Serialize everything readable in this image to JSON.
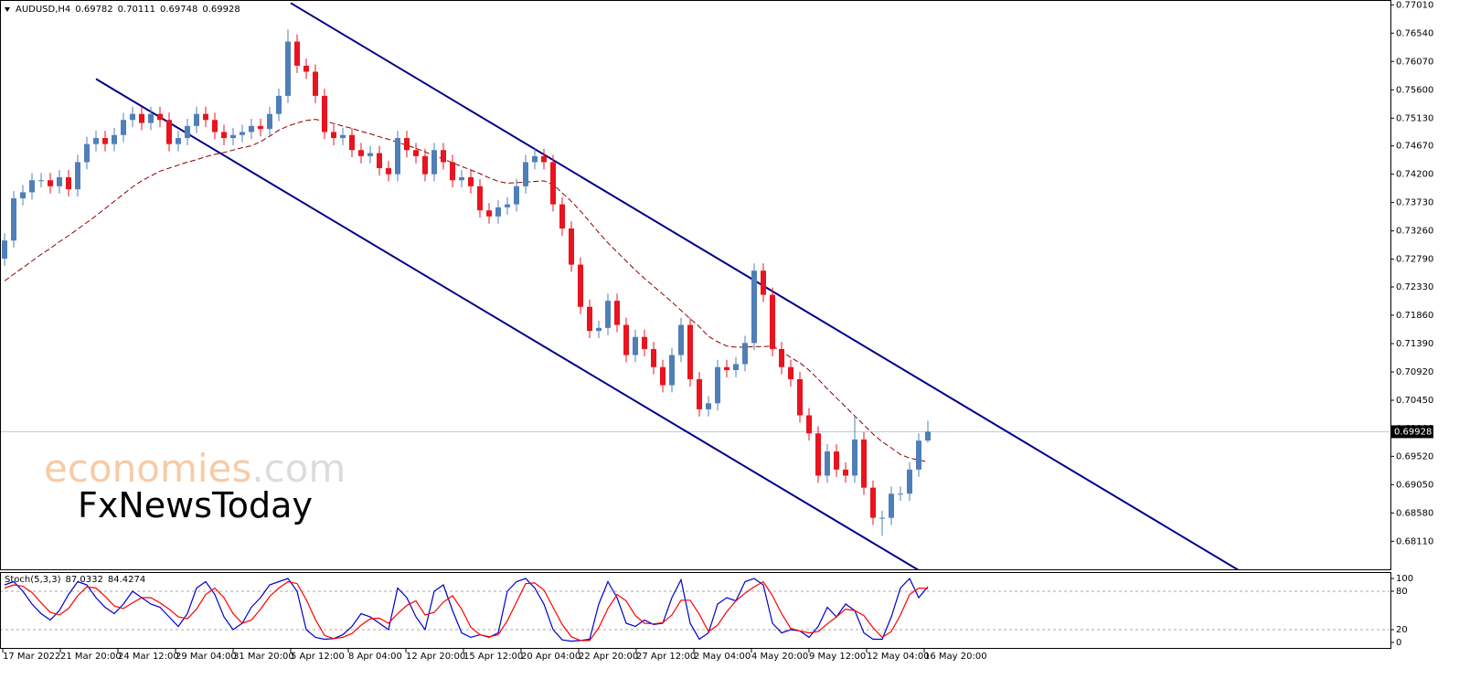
{
  "chart_data": {
    "type": "candlestick",
    "symbol": "AUDUSD,H4",
    "up_color": "#4f7fb8",
    "down_color": "#e8141e",
    "open": [
      0.728,
      0.731,
      0.738,
      0.739,
      0.741,
      0.741,
      0.74,
      0.7415,
      0.7395,
      0.744,
      0.747,
      0.748,
      0.747,
      0.7485,
      0.751,
      0.752,
      0.7505,
      0.752,
      0.751,
      0.747,
      0.748,
      0.75,
      0.752,
      0.751,
      0.749,
      0.748,
      0.7485,
      0.749,
      0.75,
      0.7495,
      0.752,
      0.755,
      0.764,
      0.76,
      0.759,
      0.755,
      0.749,
      0.748,
      0.7485,
      0.746,
      0.745,
      0.7455,
      0.743,
      0.742,
      0.748,
      0.746,
      0.745,
      0.742,
      0.746,
      0.744,
      0.741,
      0.7415,
      0.74,
      0.736,
      0.735,
      0.7365,
      0.737,
      0.74,
      0.744,
      0.745,
      0.744,
      0.737,
      0.733,
      0.727,
      0.72,
      0.716,
      0.7165,
      0.721,
      0.717,
      0.712,
      0.715,
      0.713,
      0.71,
      0.707,
      0.712,
      0.717,
      0.708,
      0.703,
      0.704,
      0.71,
      0.7095,
      0.7105,
      0.714,
      0.726,
      0.722,
      0.713,
      0.71,
      0.708,
      0.702,
      0.699,
      0.692,
      0.696,
      0.693,
      0.692,
      0.698,
      0.69,
      0.685,
      0.685,
      0.689,
      0.689,
      0.693,
      0.69782
    ],
    "high": [
      0.7322,
      0.7392,
      0.7402,
      0.7422,
      0.7422,
      0.7422,
      0.7427,
      0.7427,
      0.7452,
      0.7482,
      0.7492,
      0.7492,
      0.7497,
      0.7522,
      0.7532,
      0.7532,
      0.7532,
      0.7532,
      0.7522,
      0.7492,
      0.7512,
      0.7532,
      0.7532,
      0.7522,
      0.7502,
      0.7497,
      0.7502,
      0.7512,
      0.7512,
      0.7532,
      0.7562,
      0.766,
      0.7652,
      0.7612,
      0.7602,
      0.7562,
      0.7502,
      0.7497,
      0.7497,
      0.7472,
      0.7467,
      0.7467,
      0.7442,
      0.7492,
      0.7492,
      0.7472,
      0.7462,
      0.7472,
      0.7472,
      0.7452,
      0.7427,
      0.7427,
      0.7412,
      0.7372,
      0.7377,
      0.7382,
      0.7412,
      0.7452,
      0.7462,
      0.7462,
      0.7452,
      0.7382,
      0.7342,
      0.7282,
      0.7212,
      0.7177,
      0.7222,
      0.7222,
      0.7182,
      0.7162,
      0.7162,
      0.7142,
      0.7112,
      0.7132,
      0.7182,
      0.7182,
      0.7092,
      0.7052,
      0.7112,
      0.7112,
      0.7117,
      0.7152,
      0.7272,
      0.7272,
      0.7232,
      0.7142,
      0.7112,
      0.7092,
      0.7032,
      0.7002,
      0.6972,
      0.6972,
      0.6942,
      0.702,
      0.6992,
      0.6912,
      0.6862,
      0.6902,
      0.6902,
      0.6942,
      0.699,
      0.70111
    ],
    "low": [
      0.7268,
      0.7298,
      0.7368,
      0.7378,
      0.7398,
      0.7388,
      0.7388,
      0.7383,
      0.7383,
      0.7428,
      0.7458,
      0.7458,
      0.7458,
      0.7473,
      0.7498,
      0.7493,
      0.7493,
      0.7498,
      0.7458,
      0.7458,
      0.7468,
      0.7488,
      0.7498,
      0.7478,
      0.7468,
      0.7468,
      0.7473,
      0.7478,
      0.7483,
      0.7483,
      0.7508,
      0.7538,
      0.7588,
      0.7578,
      0.7538,
      0.7478,
      0.7468,
      0.7468,
      0.7448,
      0.7438,
      0.7438,
      0.7418,
      0.7408,
      0.7408,
      0.7448,
      0.7438,
      0.7408,
      0.7408,
      0.7428,
      0.7398,
      0.7398,
      0.7388,
      0.7348,
      0.7338,
      0.7338,
      0.7353,
      0.7358,
      0.7388,
      0.7428,
      0.7428,
      0.7358,
      0.7318,
      0.7258,
      0.7188,
      0.7148,
      0.7148,
      0.7153,
      0.7158,
      0.7108,
      0.7108,
      0.7118,
      0.7088,
      0.7058,
      0.7058,
      0.7108,
      0.7068,
      0.7018,
      0.7018,
      0.7028,
      0.7083,
      0.7083,
      0.7093,
      0.7128,
      0.7208,
      0.7118,
      0.7088,
      0.7068,
      0.7008,
      0.6978,
      0.6908,
      0.6908,
      0.6918,
      0.6908,
      0.6908,
      0.6888,
      0.6838,
      0.682,
      0.6838,
      0.6878,
      0.6878,
      0.6918,
      0.69748
    ],
    "close": [
      0.731,
      0.738,
      0.739,
      0.741,
      0.741,
      0.74,
      0.7415,
      0.7395,
      0.744,
      0.747,
      0.748,
      0.747,
      0.7485,
      0.751,
      0.752,
      0.7505,
      0.752,
      0.751,
      0.747,
      0.748,
      0.75,
      0.752,
      0.751,
      0.749,
      0.748,
      0.7485,
      0.749,
      0.75,
      0.7495,
      0.752,
      0.755,
      0.764,
      0.76,
      0.759,
      0.755,
      0.749,
      0.748,
      0.7485,
      0.746,
      0.745,
      0.7455,
      0.743,
      0.742,
      0.748,
      0.746,
      0.745,
      0.742,
      0.746,
      0.744,
      0.741,
      0.7415,
      0.74,
      0.736,
      0.735,
      0.7365,
      0.737,
      0.74,
      0.744,
      0.745,
      0.744,
      0.737,
      0.733,
      0.727,
      0.72,
      0.716,
      0.7165,
      0.721,
      0.717,
      0.712,
      0.715,
      0.713,
      0.71,
      0.707,
      0.712,
      0.717,
      0.708,
      0.703,
      0.704,
      0.71,
      0.7095,
      0.7105,
      0.714,
      0.726,
      0.722,
      0.713,
      0.71,
      0.708,
      0.702,
      0.699,
      0.692,
      0.696,
      0.693,
      0.692,
      0.698,
      0.69,
      0.685,
      0.685,
      0.689,
      0.689,
      0.693,
      0.6978,
      0.69928
    ],
    "moving_average": {
      "color": "#8b0000",
      "values": [
        0.7243,
        0.7254,
        0.7265,
        0.7276,
        0.7287,
        0.7297,
        0.7308,
        0.7318,
        0.7329,
        0.734,
        0.7351,
        0.7363,
        0.7375,
        0.7387,
        0.7399,
        0.7409,
        0.7417,
        0.7425,
        0.743,
        0.7435,
        0.744,
        0.7444,
        0.7449,
        0.7453,
        0.7456,
        0.746,
        0.7464,
        0.7467,
        0.7474,
        0.7483,
        0.7493,
        0.75,
        0.7505,
        0.7509,
        0.7511,
        0.7508,
        0.7504,
        0.75,
        0.7496,
        0.7491,
        0.7487,
        0.7482,
        0.7478,
        0.7473,
        0.7468,
        0.7463,
        0.7457,
        0.7451,
        0.7445,
        0.7439,
        0.7433,
        0.7427,
        0.7421,
        0.7414,
        0.7408,
        0.7405,
        0.7406,
        0.7407,
        0.7408,
        0.7409,
        0.7403,
        0.7389,
        0.7375,
        0.7359,
        0.7341,
        0.7323,
        0.7306,
        0.7291,
        0.7276,
        0.7261,
        0.7247,
        0.7234,
        0.7221,
        0.7208,
        0.7194,
        0.718,
        0.7167,
        0.7151,
        0.7142,
        0.7135,
        0.7133,
        0.7133,
        0.7134,
        0.7134,
        0.7135,
        0.7126,
        0.7116,
        0.7107,
        0.7095,
        0.708,
        0.7064,
        0.7049,
        0.7034,
        0.7019,
        0.7004,
        0.6989,
        0.6976,
        0.6966,
        0.6955,
        0.6949,
        0.6946,
        0.6943
      ]
    },
    "channel": {
      "color": "#00008b",
      "lines": [
        {
          "x": [
            31.3,
            135
          ],
          "y": [
            0.7704,
            0.6763
          ]
        },
        {
          "x": [
            10,
            100
          ],
          "y": [
            0.7578,
            0.6763
          ]
        }
      ]
    },
    "current_price": 0.69928,
    "xlim": [
      -0.5,
      151.6
    ],
    "ylim": [
      0.6763,
      0.7709
    ],
    "yticks": [
      {
        "value": 0.7701,
        "label": "0.77010"
      },
      {
        "value": 0.7654,
        "label": "0.76540"
      },
      {
        "value": 0.7607,
        "label": "0.76070"
      },
      {
        "value": 0.756,
        "label": "0.75600"
      },
      {
        "value": 0.7513,
        "label": "0.75130"
      },
      {
        "value": 0.7467,
        "label": "0.74670"
      },
      {
        "value": 0.742,
        "label": "0.74200"
      },
      {
        "value": 0.7373,
        "label": "0.73730"
      },
      {
        "value": 0.7326,
        "label": "0.73260"
      },
      {
        "value": 0.7279,
        "label": "0.72790"
      },
      {
        "value": 0.7233,
        "label": "0.72330"
      },
      {
        "value": 0.7186,
        "label": "0.71860"
      },
      {
        "value": 0.7139,
        "label": "0.71390"
      },
      {
        "value": 0.7092,
        "label": "0.70920"
      },
      {
        "value": 0.7045,
        "label": "0.70450"
      },
      {
        "value": 0.6998,
        "label": "0.69980"
      },
      {
        "value": 0.6952,
        "label": "0.69520"
      },
      {
        "value": 0.6905,
        "label": "0.69050"
      },
      {
        "value": 0.6858,
        "label": "0.68580"
      },
      {
        "value": 0.6811,
        "label": "0.68110"
      }
    ],
    "xticks": [
      {
        "value": -0.2,
        "label": "17 Mar 2022"
      },
      {
        "value": 6.1,
        "label": "21 Mar 20:00"
      },
      {
        "value": 12.4,
        "label": "24 Mar 12:00"
      },
      {
        "value": 18.7,
        "label": "29 Mar 04:00"
      },
      {
        "value": 25,
        "label": "31 Mar 20:00"
      },
      {
        "value": 31.3,
        "label": "5 Apr 12:00"
      },
      {
        "value": 37.6,
        "label": "8 Apr 04:00"
      },
      {
        "value": 43.9,
        "label": "12 Apr 20:00"
      },
      {
        "value": 50.2,
        "label": "15 Apr 12:00"
      },
      {
        "value": 56.5,
        "label": "20 Apr 04:00"
      },
      {
        "value": 62.8,
        "label": "22 Apr 20:00"
      },
      {
        "value": 69.1,
        "label": "27 Apr 12:00"
      },
      {
        "value": 75.4,
        "label": "2 May 04:00"
      },
      {
        "value": 81.7,
        "label": "4 May 20:00"
      },
      {
        "value": 88,
        "label": "9 May 12:00"
      },
      {
        "value": 94.3,
        "label": "12 May 04:00"
      },
      {
        "value": 100.6,
        "label": "16 May 20:00"
      }
    ],
    "stochastic": {
      "name": "Stoch(5,3,3)",
      "ylim": [
        -10,
        110
      ],
      "yticks": [
        100,
        80,
        20,
        0
      ],
      "levels": [
        80,
        20
      ],
      "series": [
        {
          "color": "#0000cd",
          "values": [
            90,
            95,
            80,
            60,
            45,
            35,
            50,
            75,
            95,
            90,
            70,
            55,
            45,
            60,
            80,
            70,
            60,
            55,
            40,
            25,
            45,
            85,
            95,
            75,
            40,
            20,
            30,
            55,
            70,
            90,
            95,
            100,
            80,
            20,
            8,
            5,
            6,
            12,
            25,
            45,
            40,
            30,
            20,
            85,
            70,
            40,
            20,
            80,
            90,
            50,
            15,
            8,
            12,
            8,
            15,
            80,
            95,
            100,
            85,
            60,
            20,
            4,
            2,
            3,
            5,
            60,
            95,
            70,
            30,
            25,
            35,
            28,
            30,
            70,
            98,
            30,
            5,
            15,
            60,
            70,
            65,
            95,
            100,
            90,
            30,
            15,
            20,
            18,
            8,
            25,
            55,
            40,
            60,
            50,
            15,
            5,
            5,
            40,
            85,
            100,
            70,
            87.0332
          ]
        },
        {
          "color": "#ff0000",
          "values": [
            85,
            90,
            88,
            78,
            62,
            47,
            43,
            53,
            73,
            87,
            85,
            72,
            57,
            53,
            62,
            70,
            70,
            62,
            52,
            40,
            37,
            52,
            75,
            85,
            70,
            45,
            30,
            35,
            52,
            72,
            85,
            95,
            92,
            67,
            36,
            11,
            6,
            8,
            14,
            27,
            37,
            38,
            30,
            45,
            58,
            65,
            43,
            47,
            63,
            73,
            52,
            24,
            12,
            9,
            12,
            34,
            63,
            92,
            93,
            82,
            55,
            28,
            9,
            3,
            3,
            23,
            53,
            75,
            65,
            42,
            30,
            29,
            31,
            43,
            66,
            66,
            44,
            17,
            27,
            48,
            65,
            77,
            87,
            95,
            73,
            45,
            22,
            18,
            15,
            17,
            29,
            40,
            52,
            50,
            42,
            23,
            8,
            17,
            43,
            75,
            85,
            84.4274
          ]
        }
      ]
    },
    "watermark": {
      "brand": "economies",
      "domain": ".com",
      "sub": "FxNewsToday"
    }
  }
}
